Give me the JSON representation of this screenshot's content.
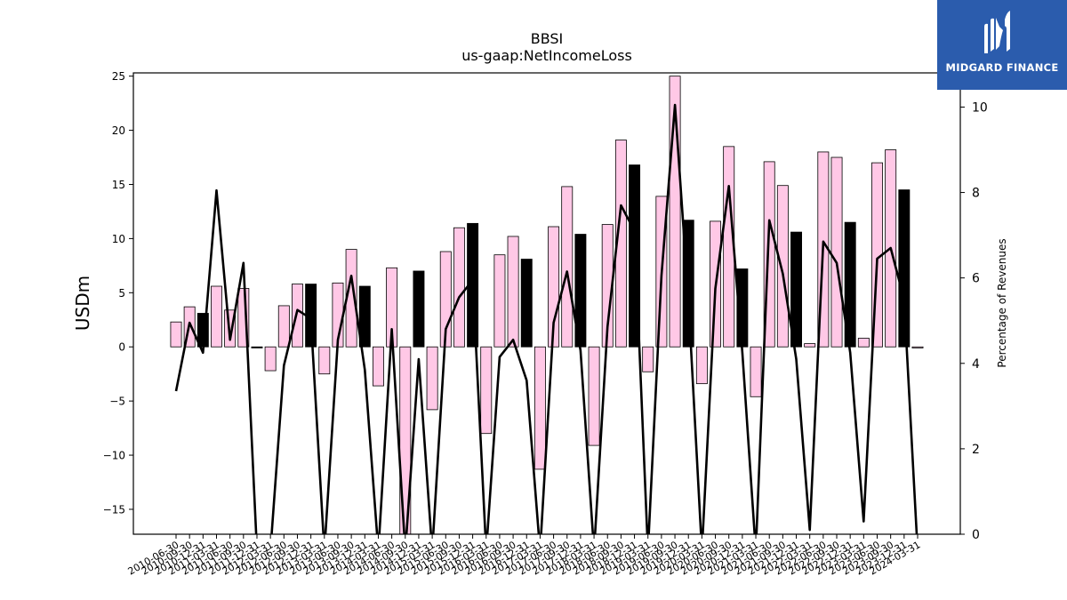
{
  "logo": {
    "text": "MIDGARD FINANCE",
    "icon": "midgard-logo-icon",
    "bg_color": "#2b5cad"
  },
  "chart_data": {
    "type": "bar",
    "title": "BBSI",
    "subtitle": "us-gaap:NetIncomeLoss",
    "ylabel": "USDm",
    "y2label": "Percentage of Revenues",
    "ylim": [
      -17.3,
      25.3
    ],
    "y2lim": [
      0,
      10.8
    ],
    "yticks": [
      -15,
      -10,
      -5,
      0,
      5,
      10,
      15,
      20,
      25
    ],
    "y2ticks": [
      0,
      2,
      4,
      6,
      8,
      10
    ],
    "grid": false,
    "colors": {
      "quarterly": "#ffc8e6",
      "annual": "#000000",
      "line": "#000000"
    },
    "categories": [
      "2010-06-30",
      "2010-09-30",
      "2010-12-31",
      "2011-03-31",
      "2011-06-30",
      "2011-09-30",
      "2011-12-31",
      "2012-03-31",
      "2012-06-30",
      "2012-09-30",
      "2012-12-31",
      "2013-03-31",
      "2013-06-30",
      "2013-09-30",
      "2013-12-31",
      "2014-03-31",
      "2014-06-30",
      "2014-09-30",
      "2014-12-31",
      "2015-03-31",
      "2015-06-30",
      "2015-09-30",
      "2015-12-31",
      "2016-03-31",
      "2016-06-30",
      "2016-09-30",
      "2016-12-31",
      "2017-03-31",
      "2017-06-30",
      "2017-09-30",
      "2017-12-31",
      "2018-03-31",
      "2018-06-30",
      "2018-09-30",
      "2018-12-31",
      "2019-03-31",
      "2019-06-30",
      "2019-09-30",
      "2019-12-31",
      "2020-03-31",
      "2020-06-30",
      "2020-09-30",
      "2020-12-31",
      "2021-03-31",
      "2021-06-30",
      "2021-09-30",
      "2021-12-31",
      "2022-03-31",
      "2022-06-30",
      "2022-09-30",
      "2022-12-31",
      "2023-03-31",
      "2023-06-30",
      "2023-09-30",
      "2023-12-31",
      "2024-03-31"
    ],
    "tick_labels": [
      "2010-06-30",
      "2010-09-30",
      "2010-12-31",
      "2011-03-31",
      "2011-06-30",
      "2011-09-30",
      "2011-12-31",
      "2012-03-31",
      "2012-06-30",
      "2012-09-30",
      "2012-12-31",
      "2013-03-31",
      "2013-06-30",
      "2013-09-30",
      "2013-12-31",
      "2014-03-31",
      "2014-06-30",
      "2014-09-30",
      "2014-12-31",
      "2015-03-31",
      "2015-06-30",
      "2015-09-30",
      "2015-12-31",
      "2016-03-31",
      "2016-06-30",
      "2016-09-30",
      "2016-12-31",
      "2017-03-31",
      "2017-06-30",
      "2017-09-30",
      "2017-12-31",
      "2018-03-31",
      "2018-06-30",
      "2018-09-30",
      "2018-12-31",
      "2019-03-31",
      "2019-06-30",
      "2019-09-30",
      "2019-12-31",
      "2020-03-31",
      "2020-06-30",
      "2020-09-30",
      "2020-12-31",
      "2021-03-31",
      "2021-06-30",
      "2021-09-30",
      "2021-12-31",
      "2022-03-31",
      "2022-06-30",
      "2022-09-30",
      "2022-12-31",
      "2023-03-31",
      "2023-06-30",
      "2023-09-30",
      "2023-12-31",
      "2024-03-31"
    ],
    "bars": {
      "values": [
        2.3,
        3.7,
        3.1,
        5.6,
        3.4,
        5.4,
        -0.1,
        -2.2,
        3.8,
        5.8,
        5.8,
        -2.5,
        5.9,
        9.0,
        5.6,
        -3.6,
        7.3,
        -17.3,
        7.0,
        -5.8,
        8.8,
        11.0,
        11.4,
        -8.0,
        8.5,
        10.2,
        8.1,
        -11.3,
        11.1,
        14.8,
        10.4,
        -9.1,
        11.3,
        19.1,
        16.8,
        -2.3,
        13.9,
        25.0,
        11.7,
        -3.4,
        11.6,
        18.5,
        7.2,
        -4.6,
        17.1,
        14.9,
        10.6,
        0.3,
        18.0,
        17.5,
        11.5,
        0.8,
        17.0,
        18.2,
        14.5,
        -0.1
      ],
      "kinds": [
        "q",
        "q",
        "a",
        "q",
        "q",
        "q",
        "a",
        "q",
        "q",
        "q",
        "a",
        "q",
        "q",
        "q",
        "a",
        "q",
        "q",
        "q",
        "a",
        "q",
        "q",
        "q",
        "a",
        "q",
        "q",
        "q",
        "a",
        "q",
        "q",
        "q",
        "a",
        "q",
        "q",
        "q",
        "a",
        "q",
        "q",
        "q",
        "a",
        "q",
        "q",
        "q",
        "a",
        "q",
        "q",
        "q",
        "a",
        "q",
        "q",
        "q",
        "a",
        "q",
        "q",
        "q",
        "a",
        "q"
      ]
    },
    "line": {
      "axis": "y2",
      "values": [
        3.35,
        4.95,
        4.25,
        8.05,
        4.55,
        6.35,
        -0.4,
        -0.4,
        3.95,
        5.25,
        5.05,
        -0.4,
        4.55,
        6.05,
        3.85,
        -0.4,
        4.8,
        -0.4,
        4.1,
        -0.4,
        4.8,
        5.55,
        5.95,
        -0.4,
        4.15,
        4.55,
        3.6,
        -0.4,
        4.95,
        6.15,
        4.3,
        -0.4,
        4.85,
        7.7,
        7.1,
        -0.4,
        6.05,
        10.05,
        5.5,
        -0.4,
        5.75,
        8.15,
        4.25,
        -0.4,
        7.35,
        6.1,
        4.1,
        0.1,
        6.85,
        6.35,
        4.25,
        0.3,
        6.45,
        6.7,
        5.5,
        -0.4
      ]
    }
  }
}
